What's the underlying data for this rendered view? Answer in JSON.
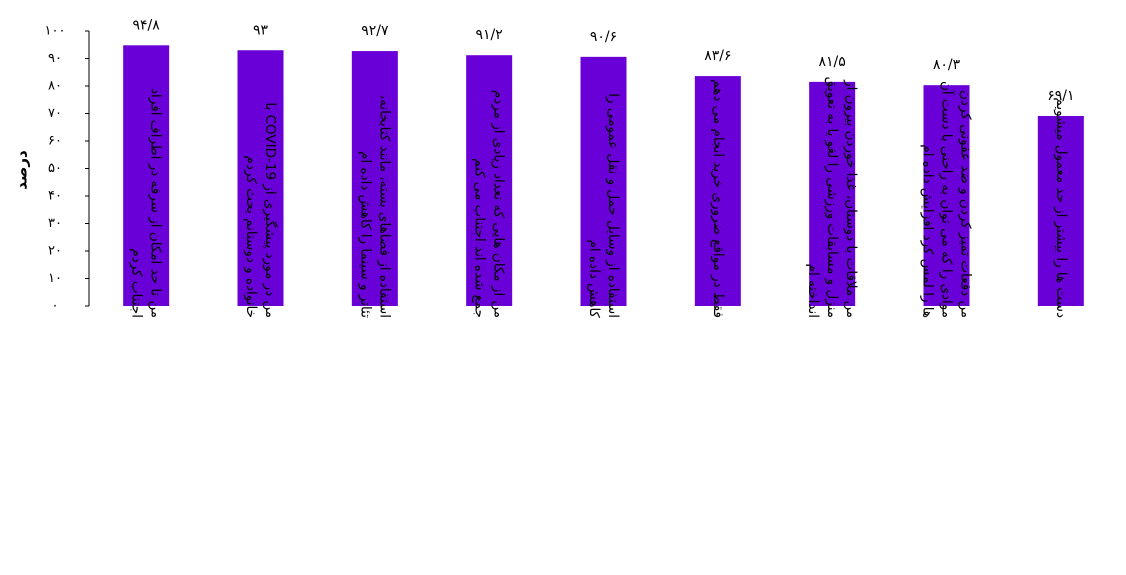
{
  "chart_data": {
    "type": "bar",
    "ylabel": "درصد",
    "ylim": [
      0,
      100
    ],
    "yticks": [
      0,
      10,
      20,
      30,
      40,
      50,
      60,
      70,
      80,
      90,
      100
    ],
    "ytick_labels": [
      "۰",
      "۱۰",
      "۲۰",
      "۳۰",
      "۴۰",
      "۵۰",
      "۶۰",
      "۷۰",
      "۸۰",
      "۹۰",
      "۱۰۰"
    ],
    "bar_color": "#6a00d8",
    "values": [
      94.8,
      93,
      92.7,
      91.2,
      90.6,
      83.6,
      81.5,
      80.3,
      69.1
    ],
    "value_labels": [
      "۹۴/۸",
      "۹۳",
      "۹۲/۷",
      "۹۱/۲",
      "۹۰/۶",
      "۸۳/۶",
      "۸۱/۵",
      "۸۰/۳",
      "۶۹/۱"
    ],
    "categories": [
      [
        "من تا حد امکان از سرفه در اطراف افراد",
        "اجتناب کردم"
      ],
      [
        "من در مورد پیشگیری از COVID-19 با",
        "خانواده و دوستانم بحث کردم"
      ],
      [
        "استفاده از فضاهای بسته، مانند کتابخانه،",
        "تئاتر و سینما را کاهش داده ام"
      ],
      [
        "من از مکان هایی که تعداد زیادی از مردم",
        "جمع شده اند اجتناب می کنم"
      ],
      [
        "استفاده از وسایل حمل و نقل عمومی را",
        "کاهش داده ام"
      ],
      [
        "فقط در مواقع ضروری خرید انجام می دهم"
      ],
      [
        "من ملاقات با دوستان، غذا خوردن بیرون از",
        "منزل و مسابقات ورزشی را لغو یا به تعویق",
        "انداخته ام"
      ],
      [
        "من دفعات تمیز کردن و ضد عفونی کردن",
        "موادی را که می توان به راحتی با دست آن",
        "ها را لمس کرد افزایش داده ام"
      ],
      [
        "دست ها را بیشتر از حد معمول میشویم"
      ]
    ]
  }
}
